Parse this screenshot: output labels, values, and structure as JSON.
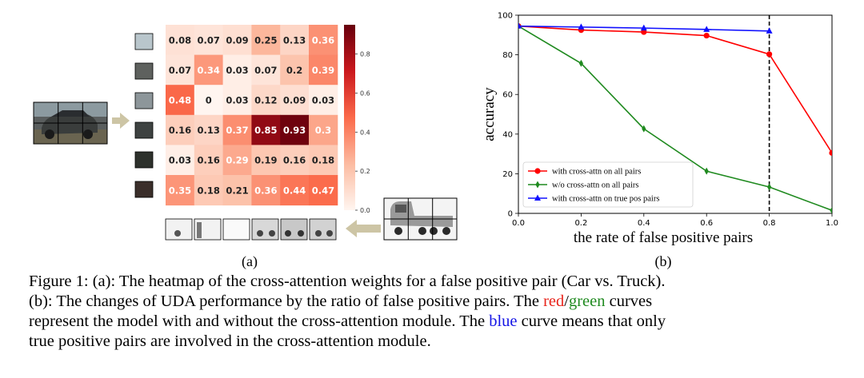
{
  "figure": {
    "panel_a_label": "(a)",
    "panel_b_label": "(b)",
    "heatmap": {
      "matrix": [
        [
          0.08,
          0.07,
          0.09,
          0.25,
          0.13,
          0.36
        ],
        [
          0.07,
          0.34,
          0.03,
          0.07,
          0.2,
          0.39
        ],
        [
          0.48,
          0,
          0.03,
          0.12,
          0.09,
          0.03
        ],
        [
          0.16,
          0.13,
          0.37,
          0.85,
          0.93,
          0.3
        ],
        [
          0.03,
          0.16,
          0.29,
          0.19,
          0.16,
          0.18
        ],
        [
          0.35,
          0.18,
          0.21,
          0.36,
          0.44,
          0.47
        ]
      ],
      "colorbar_ticks": [
        "0.0",
        "0.2",
        "0.4",
        "0.6",
        "0.8"
      ],
      "colorbar_max": 0.95,
      "color_low": "#fff5f0",
      "color_high": "#67000d"
    }
  },
  "chart_data": {
    "type": "line",
    "title": "",
    "xlabel": "the rate of false positive pairs",
    "ylabel": "accuracy",
    "xlim": [
      0.0,
      1.0
    ],
    "ylim": [
      0,
      100
    ],
    "xticks": [
      0.0,
      0.2,
      0.4,
      0.6,
      0.8,
      1.0
    ],
    "xtick_labels": [
      "0.0",
      "0.2",
      "0.4",
      "0.6",
      "0.8",
      "1.0"
    ],
    "yticks": [
      0,
      20,
      40,
      60,
      80,
      100
    ],
    "ytick_labels": [
      "0",
      "20",
      "40",
      "60",
      "80",
      "100"
    ],
    "vline_x": 0.8,
    "legend_position": "lower-left",
    "series": [
      {
        "name": "with cross-attn on all pairs",
        "color": "#ff0000",
        "marker": "circle",
        "x": [
          0.0,
          0.2,
          0.4,
          0.6,
          0.8,
          1.0
        ],
        "y": [
          94.5,
          92.5,
          91.5,
          89.7,
          80.3,
          30.5
        ]
      },
      {
        "name": "w/o cross-attn on all pairs",
        "color": "#1f8a1f",
        "marker": "diamond",
        "x": [
          0.0,
          0.2,
          0.4,
          0.6,
          0.8,
          1.0
        ],
        "y": [
          94.5,
          75.7,
          42.7,
          21.3,
          13.3,
          1.5
        ]
      },
      {
        "name": "with cross-attn on true pos pairs",
        "color": "#1010ff",
        "marker": "triangle",
        "x": [
          0.0,
          0.2,
          0.4,
          0.6,
          0.8
        ],
        "y": [
          94.5,
          94.0,
          93.5,
          92.8,
          92.0
        ]
      }
    ]
  },
  "caption": {
    "line1": "Figure 1: (a): The heatmap of the cross-attention weights for a false positive pair (Car vs. Truck).",
    "line2_a": "(b): The changes of UDA performance by the ratio of false positive pairs.  The ",
    "line2_red": "red",
    "line2_slash": "/",
    "line2_green": "green",
    "line2_b": " curves",
    "line3_a": "represent the model with and without the cross-attention module. The ",
    "line3_blue": "blue",
    "line3_b": " curve means that only",
    "line4": "true positive pairs are involved in the cross-attention module."
  }
}
